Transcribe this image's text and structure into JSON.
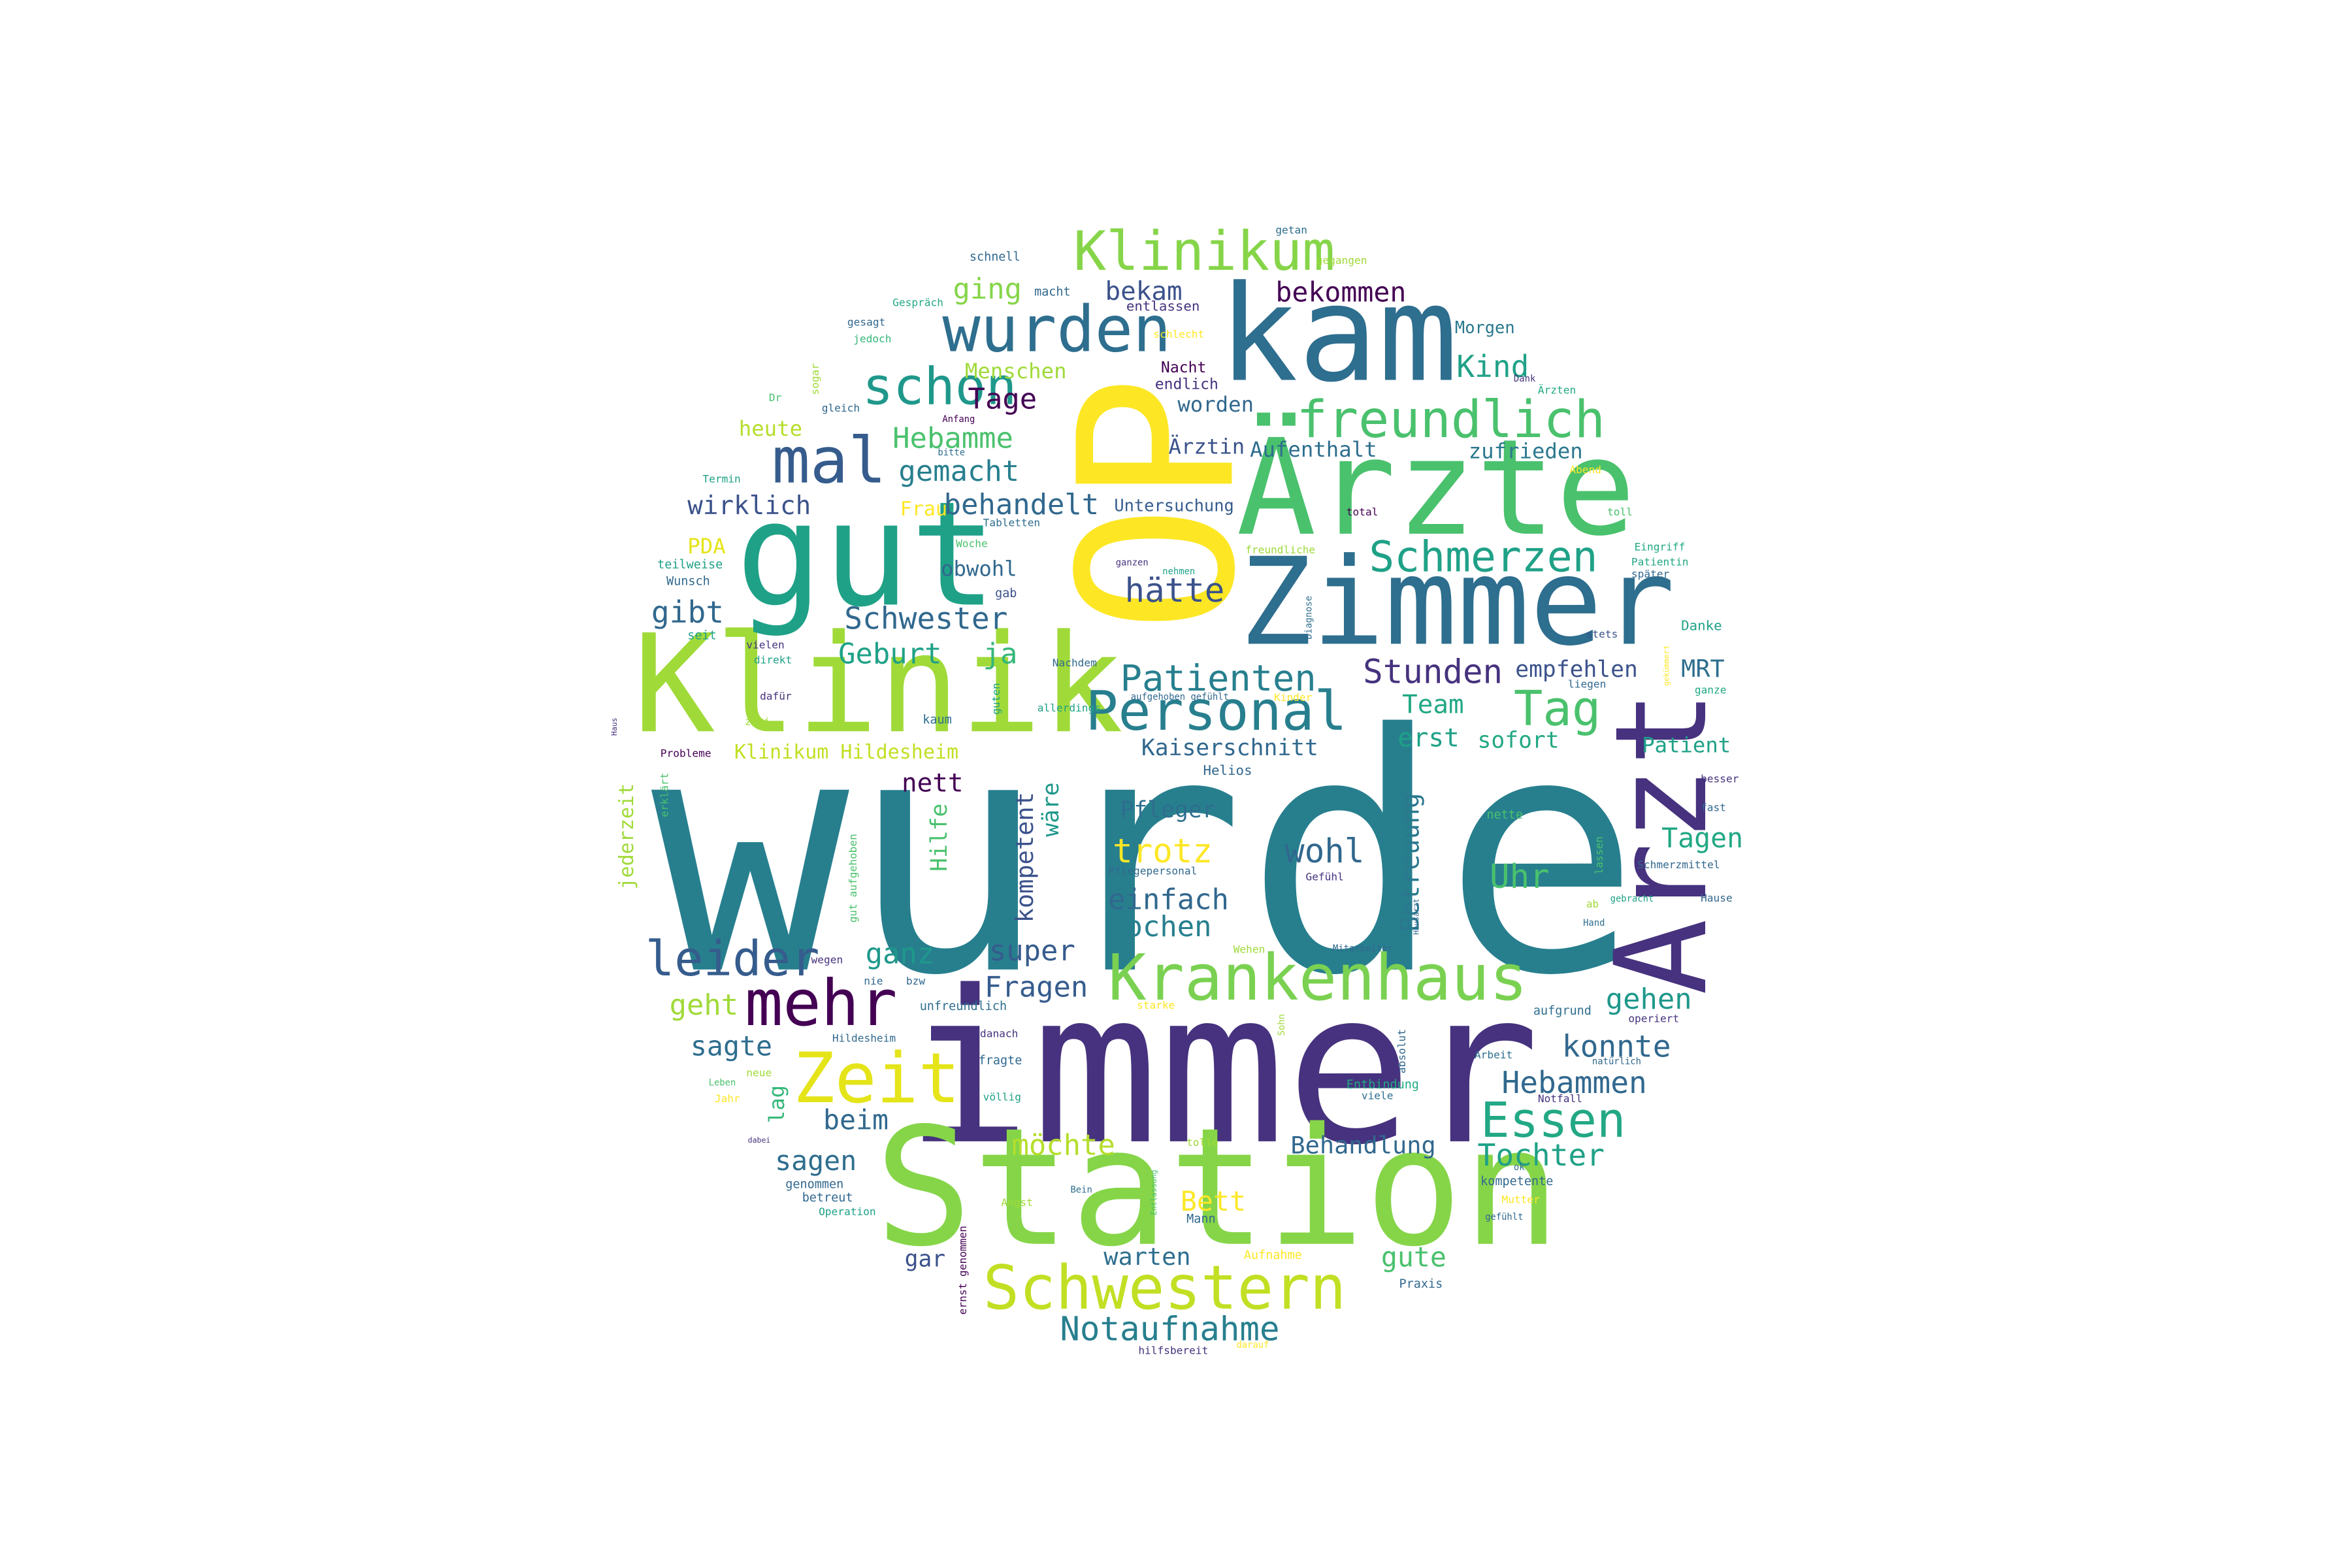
{
  "colors": {
    "background": "#ffffff",
    "palette": [
      "#440154",
      "#46327e",
      "#365c8d",
      "#277f8e",
      "#1fa187",
      "#4ac16d",
      "#a0da39",
      "#fde725"
    ]
  },
  "word_cloud": {
    "words": [
      {
        "text": "wurde",
        "weight": 1.0,
        "color": "#277f8e"
      },
      {
        "text": "immer",
        "weight": 0.6,
        "color": "#46327e"
      },
      {
        "text": "OP",
        "weight": 0.55,
        "color": "#fde725"
      },
      {
        "text": "Station",
        "weight": 0.5,
        "color": "#86d549"
      },
      {
        "text": "Zimmer",
        "weight": 0.45,
        "color": "#2e6e8e"
      },
      {
        "text": "Klinik",
        "weight": 0.43,
        "color": "#a0da39"
      },
      {
        "text": "gut",
        "weight": 0.43,
        "color": "#1fa187"
      },
      {
        "text": "kam",
        "weight": 0.4,
        "color": "#2e6e8e"
      },
      {
        "text": "Ärzte",
        "weight": 0.4,
        "color": "#4ac16d"
      },
      {
        "text": "Arzt",
        "weight": 0.38,
        "color": "#46327e"
      },
      {
        "text": "Krankenhaus",
        "weight": 0.25,
        "color": "#7ad151"
      },
      {
        "text": "wurden",
        "weight": 0.25,
        "color": "#2e6e8e"
      },
      {
        "text": "Personal",
        "weight": 0.23,
        "color": "#277f8e"
      },
      {
        "text": "Schwestern",
        "weight": 0.22,
        "color": "#c2df23"
      },
      {
        "text": "Klinikum",
        "weight": 0.2,
        "color": "#86d549"
      },
      {
        "text": "mal",
        "weight": 0.2,
        "color": "#365c8d"
      },
      {
        "text": "mehr",
        "weight": 0.2,
        "color": "#440154"
      },
      {
        "text": "Zeit",
        "weight": 0.2,
        "color": "#e5e419"
      },
      {
        "text": "freundlich",
        "weight": 0.19,
        "color": "#4ac16d"
      },
      {
        "text": "schon",
        "weight": 0.19,
        "color": "#1f988b"
      },
      {
        "text": "Essen",
        "weight": 0.18,
        "color": "#22a884"
      },
      {
        "text": "leider",
        "weight": 0.17,
        "color": "#365c8d"
      },
      {
        "text": "Schmerzen",
        "weight": 0.16,
        "color": "#1fa187"
      },
      {
        "text": "Tag",
        "weight": 0.16,
        "color": "#4ac16d"
      },
      {
        "text": "Patienten",
        "weight": 0.14,
        "color": "#277f8e"
      },
      {
        "text": "Notaufnahme",
        "weight": 0.14,
        "color": "#277f8e"
      },
      {
        "text": "Stunden",
        "weight": 0.13,
        "color": "#46327e"
      },
      {
        "text": "hätte",
        "weight": 0.13,
        "color": "#3b528b"
      },
      {
        "text": "bekommen",
        "weight": 0.12,
        "color": "#440154"
      },
      {
        "text": "Schwester",
        "weight": 0.12,
        "color": "#31688e"
      },
      {
        "text": "Kind",
        "weight": 0.12,
        "color": "#1fa187"
      },
      {
        "text": "Uhr",
        "weight": 0.12,
        "color": "#4ac16d"
      },
      {
        "text": "trotz",
        "weight": 0.12,
        "color": "#fde725"
      },
      {
        "text": "wohl",
        "weight": 0.12,
        "color": "#31688e"
      },
      {
        "text": "Hebammen",
        "weight": 0.12,
        "color": "#31688e"
      },
      {
        "text": "Tochter",
        "weight": 0.12,
        "color": "#1fa187"
      },
      {
        "text": "konnte",
        "weight": 0.12,
        "color": "#31688e"
      },
      {
        "text": "gehen",
        "weight": 0.11,
        "color": "#1f988b"
      },
      {
        "text": "Fragen",
        "weight": 0.11,
        "color": "#365c8d"
      },
      {
        "text": "super",
        "weight": 0.11,
        "color": "#365c8d"
      },
      {
        "text": "ganz",
        "weight": 0.11,
        "color": "#1f988b"
      },
      {
        "text": "einfach",
        "weight": 0.11,
        "color": "#31688e"
      },
      {
        "text": "Wochen",
        "weight": 0.11,
        "color": "#277f8e"
      },
      {
        "text": "Hebamme",
        "weight": 0.11,
        "color": "#4ac16d"
      },
      {
        "text": "Tage",
        "weight": 0.11,
        "color": "#440154"
      },
      {
        "text": "gemacht",
        "weight": 0.11,
        "color": "#277f8e"
      },
      {
        "text": "behandelt",
        "weight": 0.11,
        "color": "#31688e"
      },
      {
        "text": "wirklich",
        "weight": 0.11,
        "color": "#3b528b"
      },
      {
        "text": "gibt",
        "weight": 0.11,
        "color": "#31688e"
      },
      {
        "text": "Geburt",
        "weight": 0.11,
        "color": "#1fa187"
      },
      {
        "text": "ja",
        "weight": 0.11,
        "color": "#35b779"
      },
      {
        "text": "ging",
        "weight": 0.11,
        "color": "#86d549"
      },
      {
        "text": "bekam",
        "weight": 0.1,
        "color": "#3b528b"
      },
      {
        "text": "nett",
        "weight": 0.11,
        "color": "#440154"
      },
      {
        "text": "Team",
        "weight": 0.1,
        "color": "#22a884"
      },
      {
        "text": "erst",
        "weight": 0.1,
        "color": "#1fa187"
      },
      {
        "text": "sofort",
        "weight": 0.09,
        "color": "#22a884"
      },
      {
        "text": "empfehlen",
        "weight": 0.09,
        "color": "#3b528b"
      },
      {
        "text": "MRT",
        "weight": 0.09,
        "color": "#2e6e8e"
      },
      {
        "text": "Patient",
        "weight": 0.08,
        "color": "#1fa187"
      },
      {
        "text": "Tagen",
        "weight": 0.1,
        "color": "#22a884"
      },
      {
        "text": "Kaiserschnitt",
        "weight": 0.09,
        "color": "#31688e"
      },
      {
        "text": "Betreuung",
        "weight": 0.09,
        "color": "#2a788e"
      },
      {
        "text": "kompetent",
        "weight": 0.09,
        "color": "#3b528b"
      },
      {
        "text": "wäre",
        "weight": 0.08,
        "color": "#1f988b"
      },
      {
        "text": "Hilfe",
        "weight": 0.08,
        "color": "#4ac16d"
      },
      {
        "text": "Pfleger",
        "weight": 0.08,
        "color": "#2e6e8e"
      },
      {
        "text": "beim",
        "weight": 0.1,
        "color": "#31688e"
      },
      {
        "text": "sagen",
        "weight": 0.1,
        "color": "#2e6e8e"
      },
      {
        "text": "sagte",
        "weight": 0.1,
        "color": "#2e6e8e"
      },
      {
        "text": "geht",
        "weight": 0.1,
        "color": "#a0da39"
      },
      {
        "text": "möchte",
        "weight": 0.1,
        "color": "#b5de2b"
      },
      {
        "text": "Behandlung",
        "weight": 0.09,
        "color": "#31688e"
      },
      {
        "text": "Bett",
        "weight": 0.1,
        "color": "#fde725"
      },
      {
        "text": "gute",
        "weight": 0.1,
        "color": "#4ac16d"
      },
      {
        "text": "warten",
        "weight": 0.09,
        "color": "#2e6e8e"
      },
      {
        "text": "gar",
        "weight": 0.08,
        "color": "#3b528b"
      },
      {
        "text": "Menschen",
        "weight": 0.07,
        "color": "#a0da39"
      },
      {
        "text": "Aufenthalt",
        "weight": 0.07,
        "color": "#2e6e8e"
      },
      {
        "text": "zufrieden",
        "weight": 0.07,
        "color": "#2a788e"
      },
      {
        "text": "Ärztin",
        "weight": 0.07,
        "color": "#3b528b"
      },
      {
        "text": "worden",
        "weight": 0.07,
        "color": "#31688e"
      },
      {
        "text": "obwohl",
        "weight": 0.07,
        "color": "#31688e"
      },
      {
        "text": "Frau",
        "weight": 0.07,
        "color": "#fde725"
      },
      {
        "text": "heute",
        "weight": 0.07,
        "color": "#b5de2b"
      },
      {
        "text": "PDA",
        "weight": 0.07,
        "color": "#e5e419"
      },
      {
        "text": "Klinikum Hildesheim",
        "weight": 0.07,
        "color": "#c2df23"
      },
      {
        "text": "jederzeit",
        "weight": 0.07,
        "color": "#a0da39"
      },
      {
        "text": "lag",
        "weight": 0.07,
        "color": "#35b779"
      },
      {
        "text": "Untersuchung",
        "weight": 0.05,
        "color": "#365c8d"
      },
      {
        "text": "Morgen",
        "weight": 0.05,
        "color": "#2a788e"
      },
      {
        "text": "Nacht",
        "weight": 0.05,
        "color": "#440154"
      },
      {
        "text": "endlich",
        "weight": 0.05,
        "color": "#46327e"
      },
      {
        "text": "entlassen",
        "weight": 0.04,
        "color": "#46327e"
      },
      {
        "text": "macht",
        "weight": 0.04,
        "color": "#31688e"
      },
      {
        "text": "schnell",
        "weight": 0.04,
        "color": "#31688e"
      },
      {
        "text": "gegangen",
        "weight": 0.04,
        "color": "#a0da39"
      },
      {
        "text": "getan",
        "weight": 0.03,
        "color": "#2e6e8e"
      },
      {
        "text": "Gespräch",
        "weight": 0.03,
        "color": "#22a884"
      },
      {
        "text": "gesagt",
        "weight": 0.03,
        "color": "#31688e"
      },
      {
        "text": "jedoch",
        "weight": 0.03,
        "color": "#35b779"
      },
      {
        "text": "schlecht",
        "weight": 0.03,
        "color": "#fde725"
      },
      {
        "text": "sogar",
        "weight": 0.03,
        "color": "#a0da39"
      },
      {
        "text": "Dr",
        "weight": 0.03,
        "color": "#4ac16d"
      },
      {
        "text": "gleich",
        "weight": 0.03,
        "color": "#31688e"
      },
      {
        "text": "Anfang",
        "weight": 0.03,
        "color": "#440154"
      },
      {
        "text": "bitte",
        "weight": 0.03,
        "color": "#2e6e8e"
      },
      {
        "text": "Termin",
        "weight": 0.03,
        "color": "#1fa187"
      },
      {
        "text": "Abend",
        "weight": 0.03,
        "color": "#fde725"
      },
      {
        "text": "toll",
        "weight": 0.03,
        "color": "#4ac16d"
      },
      {
        "text": "total",
        "weight": 0.03,
        "color": "#440154"
      },
      {
        "text": "Tabletten",
        "weight": 0.03,
        "color": "#2e6e8e"
      },
      {
        "text": "Woche",
        "weight": 0.03,
        "color": "#4ac16d"
      },
      {
        "text": "freundliche",
        "weight": 0.03,
        "color": "#a0da39"
      },
      {
        "text": "ganzen",
        "weight": 0.03,
        "color": "#46327e"
      },
      {
        "text": "nehmen",
        "weight": 0.03,
        "color": "#1fa187"
      },
      {
        "text": "gab",
        "weight": 0.04,
        "color": "#3b528b"
      },
      {
        "text": "können",
        "weight": 0.03,
        "color": "#fde725"
      },
      {
        "text": "Diagnose",
        "weight": 0.03,
        "color": "#2e6e8e"
      },
      {
        "text": "teilweise",
        "weight": 0.04,
        "color": "#1fa187"
      },
      {
        "text": "Wunsch",
        "weight": 0.04,
        "color": "#31688e"
      },
      {
        "text": "seit",
        "weight": 0.04,
        "color": "#1fa187"
      },
      {
        "text": "vielen",
        "weight": 0.03,
        "color": "#46327e"
      },
      {
        "text": "direkt",
        "weight": 0.03,
        "color": "#1fa187"
      },
      {
        "text": "Nachdem",
        "weight": 0.03,
        "color": "#31688e"
      },
      {
        "text": "dafür",
        "weight": 0.03,
        "color": "#46327e"
      },
      {
        "text": "zwei",
        "weight": 0.03,
        "color": "#a0da39"
      },
      {
        "text": "kaum",
        "weight": 0.04,
        "color": "#2e6e8e"
      },
      {
        "text": "guten",
        "weight": 0.03,
        "color": "#1fa187"
      },
      {
        "text": "aufgehoben gefühlt",
        "weight": 0.03,
        "color": "#31688e"
      },
      {
        "text": "Kinder",
        "weight": 0.03,
        "color": "#fde725"
      },
      {
        "text": "allerdings",
        "weight": 0.03,
        "color": "#1fa187"
      },
      {
        "text": "Probleme",
        "weight": 0.03,
        "color": "#440154"
      },
      {
        "text": "Haus",
        "weight": 0.02,
        "color": "#46327e"
      },
      {
        "text": "erklärt",
        "weight": 0.03,
        "color": "#4ac16d"
      },
      {
        "text": "Helios",
        "weight": 0.04,
        "color": "#31688e"
      },
      {
        "text": "Pflegepersonal",
        "weight": 0.03,
        "color": "#31688e"
      },
      {
        "text": "Gefühl",
        "weight": 0.03,
        "color": "#46327e"
      },
      {
        "text": "Hausarzt",
        "weight": 0.02,
        "color": "#31688e"
      },
      {
        "text": "nette",
        "weight": 0.03,
        "color": "#4ac16d"
      },
      {
        "text": "Eingriff",
        "weight": 0.03,
        "color": "#22a884"
      },
      {
        "text": "Patientin",
        "weight": 0.03,
        "color": "#22a884"
      },
      {
        "text": "später",
        "weight": 0.03,
        "color": "#31688e"
      },
      {
        "text": "Danke",
        "weight": 0.04,
        "color": "#1fa187"
      },
      {
        "text": "stets",
        "weight": 0.03,
        "color": "#3b528b"
      },
      {
        "text": "gekümmert",
        "weight": 0.02,
        "color": "#fde725"
      },
      {
        "text": "liegen",
        "weight": 0.03,
        "color": "#31688e"
      },
      {
        "text": "ganze",
        "weight": 0.03,
        "color": "#22a884"
      },
      {
        "text": "besser",
        "weight": 0.03,
        "color": "#46327e"
      },
      {
        "text": "fast",
        "weight": 0.03,
        "color": "#31688e"
      },
      {
        "text": "Schmerzmittel",
        "weight": 0.03,
        "color": "#31688e"
      },
      {
        "text": "lassen",
        "weight": 0.03,
        "color": "#4ac16d"
      },
      {
        "text": "gebracht",
        "weight": 0.02,
        "color": "#1fa187"
      },
      {
        "text": "ab",
        "weight": 0.03,
        "color": "#a0da39"
      },
      {
        "text": "Hand",
        "weight": 0.02,
        "color": "#2e6e8e"
      },
      {
        "text": "Hause",
        "weight": 0.03,
        "color": "#31688e"
      },
      {
        "text": "Dank",
        "weight": 0.03,
        "color": "#46327e"
      },
      {
        "text": "Ärzten",
        "weight": 0.03,
        "color": "#22a884"
      },
      {
        "text": "Wehen",
        "weight": 0.03,
        "color": "#a0da39"
      },
      {
        "text": "Mitarbeiter",
        "weight": 0.02,
        "color": "#31688e"
      },
      {
        "text": "wegen",
        "weight": 0.03,
        "color": "#46327e"
      },
      {
        "text": "nie",
        "weight": 0.03,
        "color": "#31688e"
      },
      {
        "text": "bzw",
        "weight": 0.03,
        "color": "#31688e"
      },
      {
        "text": "unfreundlich",
        "weight": 0.03,
        "color": "#2e6e8e"
      },
      {
        "text": "starke",
        "weight": 0.03,
        "color": "#fde725"
      },
      {
        "text": "Sohn",
        "weight": 0.02,
        "color": "#a0da39"
      },
      {
        "text": "absolut",
        "weight": 0.03,
        "color": "#31688e"
      },
      {
        "text": "aufgrund",
        "weight": 0.03,
        "color": "#2e6e8e"
      },
      {
        "text": "operiert",
        "weight": 0.03,
        "color": "#46327e"
      },
      {
        "text": "danach",
        "weight": 0.03,
        "color": "#46327e"
      },
      {
        "text": "Hildesheim",
        "weight": 0.03,
        "color": "#31688e"
      },
      {
        "text": "fragte",
        "weight": 0.03,
        "color": "#31688e"
      },
      {
        "text": "Leben",
        "weight": 0.02,
        "color": "#4ac16d"
      },
      {
        "text": "neue",
        "weight": 0.03,
        "color": "#a0da39"
      },
      {
        "text": "Jahr",
        "weight": 0.03,
        "color": "#fde725"
      },
      {
        "text": "völlig",
        "weight": 0.03,
        "color": "#1fa187"
      },
      {
        "text": "Entbindung",
        "weight": 0.03,
        "color": "#22a884"
      },
      {
        "text": "viele",
        "weight": 0.03,
        "color": "#2e6e8e"
      },
      {
        "text": "Arbeit",
        "weight": 0.03,
        "color": "#2e6e8e"
      },
      {
        "text": "natürlich",
        "weight": 0.03,
        "color": "#31688e"
      },
      {
        "text": "Notfall",
        "weight": 0.03,
        "color": "#46327e"
      },
      {
        "text": "dabei",
        "weight": 0.02,
        "color": "#46327e"
      },
      {
        "text": "tolle",
        "weight": 0.03,
        "color": "#a0da39"
      },
      {
        "text": "ok",
        "weight": 0.02,
        "color": "#2e6e8e"
      },
      {
        "text": "genommen",
        "weight": 0.03,
        "color": "#31688e"
      },
      {
        "text": "betreut",
        "weight": 0.03,
        "color": "#31688e"
      },
      {
        "text": "Angst",
        "weight": 0.03,
        "color": "#a0da39"
      },
      {
        "text": "Bein",
        "weight": 0.02,
        "color": "#2e6e8e"
      },
      {
        "text": "Entlassung",
        "weight": 0.02,
        "color": "#4ac16d"
      },
      {
        "text": "kompetente",
        "weight": 0.03,
        "color": "#31688e"
      },
      {
        "text": "Mutter",
        "weight": 0.03,
        "color": "#fde725"
      },
      {
        "text": "gefühlt",
        "weight": 0.02,
        "color": "#31688e"
      },
      {
        "text": "Operation",
        "weight": 0.03,
        "color": "#1fa187"
      },
      {
        "text": "Mann",
        "weight": 0.03,
        "color": "#31688e"
      },
      {
        "text": "Aufnahme",
        "weight": 0.03,
        "color": "#fde725"
      },
      {
        "text": "Praxis",
        "weight": 0.03,
        "color": "#31688e"
      },
      {
        "text": "ernst genommen",
        "weight": 0.03,
        "color": "#440154"
      },
      {
        "text": "gut aufgehoben",
        "weight": 0.03,
        "color": "#4ac16d"
      },
      {
        "text": "hilfsbereit",
        "weight": 0.03,
        "color": "#46327e"
      },
      {
        "text": "darauf",
        "weight": 0.02,
        "color": "#fde725"
      }
    ]
  }
}
